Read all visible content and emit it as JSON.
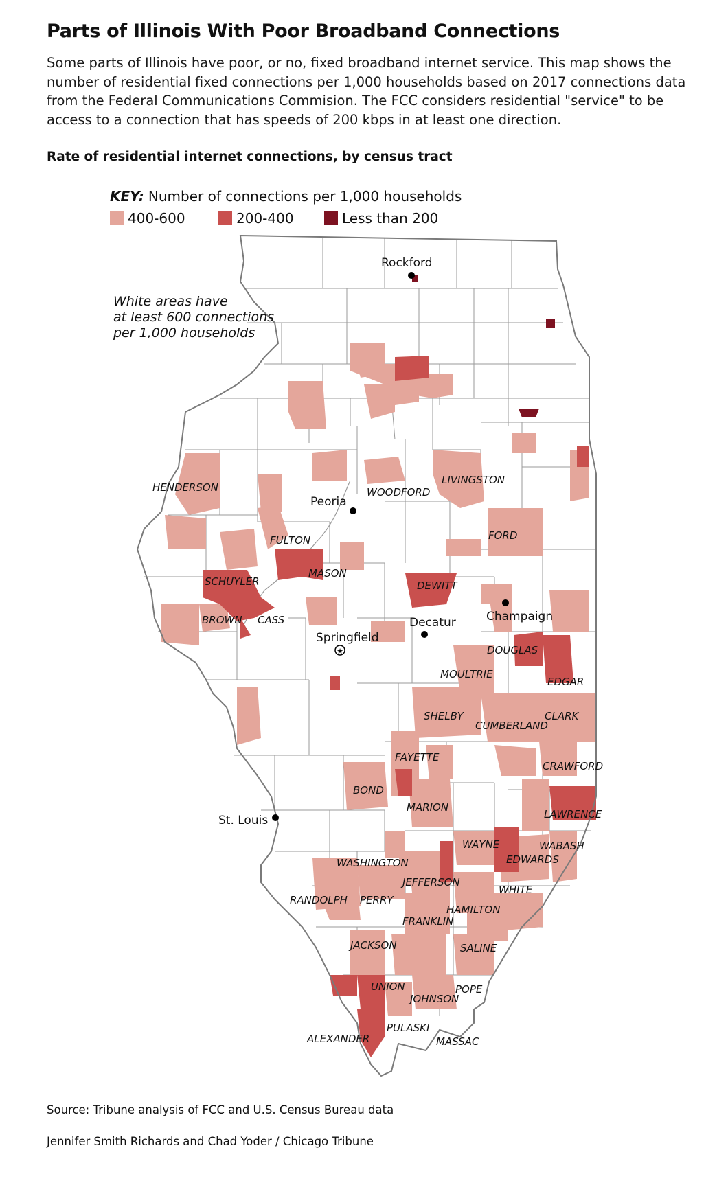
{
  "title": "Parts of Illinois With Poor Broadband Connections",
  "intro": "Some parts of Illinois have poor, or no, fixed broadband internet service. This map shows the number of residential fixed connections per 1,000 households based on 2017 connections data from the Federal Communications Commision. The FCC considers residential \"service\" to be access to a connection that has speeds of 200 kbps in at least one direction.",
  "subhead": "Rate of residential internet connections, by census tract",
  "key": {
    "label": "KEY:",
    "description": "Number of connections per 1,000 households",
    "items": [
      {
        "label": "400-600",
        "color": "#e4a69b"
      },
      {
        "label": "200-400",
        "color": "#c9504e"
      },
      {
        "label": "Less than 200",
        "color": "#7d1221"
      }
    ]
  },
  "map": {
    "note_lines": [
      "White areas have",
      "at least 600 connections",
      "per 1,000 households"
    ],
    "cities": {
      "rockford": "Rockford",
      "peoria": "Peoria",
      "decatur": "Decatur",
      "champaign": "Champaign",
      "springfield": "Springfield",
      "st_louis": "St. Louis"
    },
    "counties": {
      "henderson": "HENDERSON",
      "woodford": "WOODFORD",
      "livingston": "LIVINGSTON",
      "fulton": "FULTON",
      "ford": "FORD",
      "mason": "MASON",
      "schuyler": "SCHUYLER",
      "dewitt": "DEWITT",
      "brown": "BROWN",
      "cass": "CASS",
      "douglas": "DOUGLAS",
      "moultrie": "MOULTRIE",
      "edgar": "EDGAR",
      "shelby": "SHELBY",
      "cumberland": "CUMBERLAND",
      "clark": "CLARK",
      "fayette": "FAYETTE",
      "crawford": "CRAWFORD",
      "bond": "BOND",
      "lawrence": "LAWRENCE",
      "marion": "MARION",
      "wayne": "WAYNE",
      "wabash": "WABASH",
      "washington": "WASHINGTON",
      "edwards": "EDWARDS",
      "jefferson": "JEFFERSON",
      "white": "WHITE",
      "randolph": "RANDOLPH",
      "perry": "PERRY",
      "hamilton": "HAMILTON",
      "franklin": "FRANKLIN",
      "jackson": "JACKSON",
      "saline": "SALINE",
      "union": "UNION",
      "pope": "POPE",
      "johnson": "JOHNSON",
      "pulaski": "PULASKI",
      "alexander": "ALEXANDER",
      "massac": "MASSAC"
    }
  },
  "source": "Source: Tribune analysis of FCC and U.S. Census Bureau data",
  "credit": "Jennifer Smith Richards and Chad Yoder / Chicago Tribune"
}
